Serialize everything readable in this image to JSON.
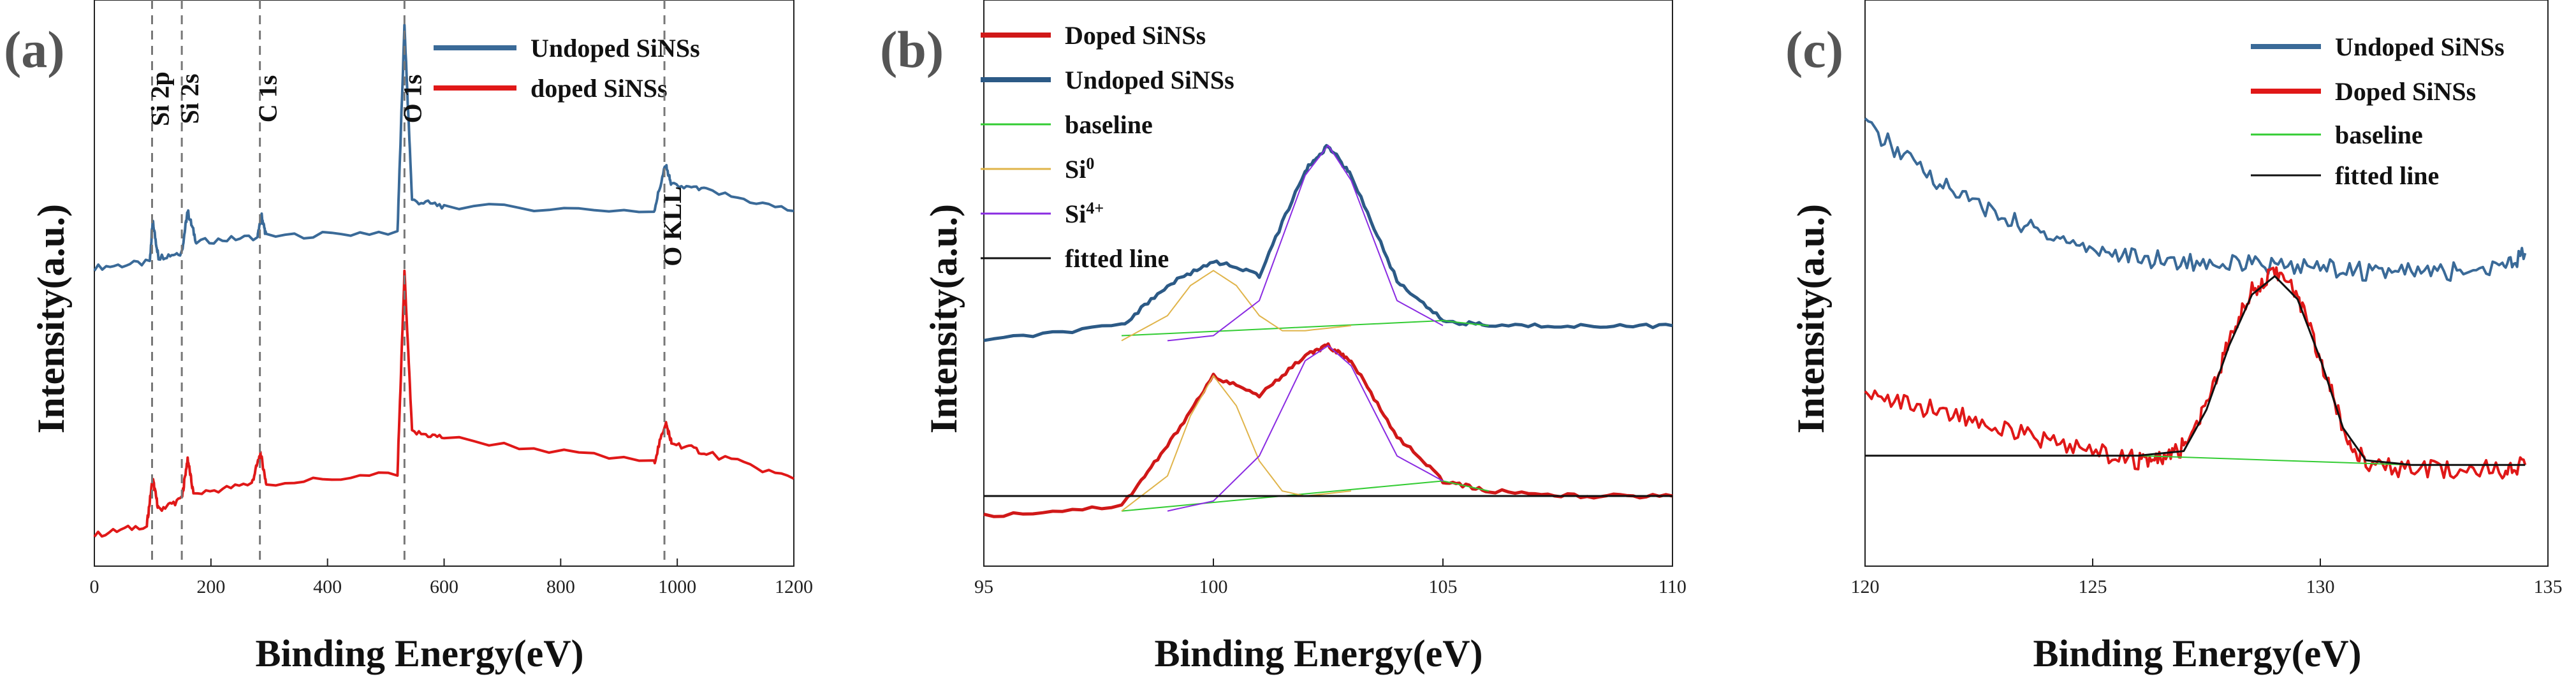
{
  "chart_data": [
    {
      "type": "line",
      "panel_label": "(a)",
      "xlabel": "Binding Energy(eV)",
      "ylabel": "Intensity(a.u.)",
      "xlim": [
        0,
        1200
      ],
      "xticks": [
        0,
        200,
        400,
        600,
        800,
        1000,
        1200
      ],
      "legend": [
        "Undoped SiNSs",
        "doped SiNSs"
      ],
      "series": [
        {
          "name": "Undoped SiNSs",
          "color": "#3a6a98",
          "x": [
            0,
            95,
            100,
            110,
            150,
            160,
            175,
            280,
            287,
            295,
            520,
            532,
            545,
            600,
            960,
            980,
            990,
            1050,
            1200
          ],
          "y": [
            53,
            54,
            62,
            55,
            56,
            64,
            58,
            59,
            63,
            59,
            60,
            100,
            66,
            65,
            64,
            73,
            69,
            68,
            64
          ]
        },
        {
          "name": "doped SiNSs",
          "color": "#e01818",
          "x": [
            0,
            90,
            100,
            110,
            150,
            160,
            170,
            270,
            285,
            295,
            520,
            532,
            545,
            600,
            960,
            980,
            990,
            1050,
            1200
          ],
          "y": [
            1,
            3,
            12,
            6,
            8,
            16,
            9,
            11,
            17,
            11,
            13,
            52,
            21,
            20,
            15,
            23,
            19,
            17,
            12
          ]
        }
      ],
      "peak_labels": [
        {
          "text": "Si 2p",
          "x": 99
        },
        {
          "text": "Si 2s",
          "x": 150
        },
        {
          "text": "C 1s",
          "x": 284
        },
        {
          "text": "O 1s",
          "x": 532
        },
        {
          "text": "O KLL",
          "x": 978
        }
      ]
    },
    {
      "type": "line",
      "panel_label": "(b)",
      "xlabel": "Binding Energy(eV)",
      "ylabel": "Intensity(a.u.)",
      "xlim": [
        95,
        110
      ],
      "xticks": [
        95,
        100,
        105,
        110
      ],
      "legend": [
        "Doped SiNSs",
        "Undoped SiNSs",
        "baseline",
        "Si0",
        "Si4+",
        "fitted line"
      ],
      "series": [
        {
          "name": "Doped SiNSs",
          "color": "#d01818",
          "x": [
            95,
            98,
            99,
            100,
            101,
            102,
            102.5,
            103,
            104,
            105,
            106,
            108,
            110
          ],
          "y": [
            2,
            4,
            16,
            30,
            26,
            34,
            36,
            33,
            18,
            9,
            7,
            6,
            6
          ]
        },
        {
          "name": "Undoped SiNSs",
          "color": "#2c5a86",
          "x": [
            95,
            98,
            99,
            100,
            101,
            102,
            102.5,
            103,
            104,
            105,
            106,
            108,
            110
          ],
          "y": [
            37,
            40,
            48,
            53,
            50,
            71,
            76,
            70,
            49,
            41,
            40,
            40,
            40
          ]
        },
        {
          "name": "baseline",
          "color": "#33cc33",
          "x": [
            98,
            105,
            106
          ],
          "y": [
            38,
            41,
            40
          ]
        },
        {
          "name": "baseline",
          "color": "#33cc33",
          "x": [
            98,
            105,
            106
          ],
          "y": [
            3,
            9,
            7
          ]
        },
        {
          "name": "Si0",
          "color": "#e0b44a",
          "x": [
            98,
            99,
            99.5,
            100,
            100.5,
            101,
            101.5,
            102,
            103
          ],
          "y": [
            37,
            42,
            48,
            51,
            48,
            42,
            39,
            39,
            40
          ]
        },
        {
          "name": "Si0",
          "color": "#e0b44a",
          "x": [
            98,
            99,
            99.5,
            100,
            100.5,
            101,
            101.5,
            102,
            103
          ],
          "y": [
            3,
            10,
            22,
            30,
            24,
            13,
            7,
            6,
            7
          ]
        },
        {
          "name": "Si4+",
          "color": "#8a2be2",
          "x": [
            99,
            100,
            101,
            102,
            102.5,
            103,
            104,
            105
          ],
          "y": [
            37,
            38,
            45,
            70,
            76,
            69,
            45,
            40
          ]
        },
        {
          "name": "Si4+",
          "color": "#8a2be2",
          "x": [
            99,
            100,
            101,
            102,
            102.5,
            103,
            104,
            105
          ],
          "y": [
            3,
            5,
            14,
            33,
            36,
            32,
            14,
            9
          ]
        },
        {
          "name": "fitted line",
          "color": "#111111",
          "x": [
            95,
            110
          ],
          "y": [
            6,
            6
          ]
        }
      ]
    },
    {
      "type": "line",
      "panel_label": "(c)",
      "xlabel": "Binding Energy(eV)",
      "ylabel": "Intensity(a.u.)",
      "xlim": [
        120,
        135
      ],
      "xticks": [
        120,
        125,
        130,
        135
      ],
      "legend": [
        "Undoped SiNSs",
        "Doped SiNSs",
        "baseline",
        "fitted line"
      ],
      "series": [
        {
          "name": "Undoped SiNSs",
          "color": "#3a6a98",
          "x": [
            120,
            121,
            122,
            123,
            124,
            125,
            126,
            127,
            128,
            129,
            130,
            131,
            132,
            133,
            134,
            134.5
          ],
          "y": [
            88,
            80,
            73,
            68,
            64,
            61,
            59,
            58,
            58,
            57,
            57,
            56,
            56,
            56,
            57,
            60
          ]
        },
        {
          "name": "Doped SiNSs",
          "color": "#e01818",
          "x": [
            120,
            121,
            122,
            123,
            124,
            125,
            126,
            126.5,
            127,
            127.5,
            128,
            128.5,
            129,
            129.5,
            130,
            130.5,
            131,
            132,
            133,
            134,
            134.5
          ],
          "y": [
            30,
            27,
            25,
            22,
            19,
            17,
            15,
            15,
            18,
            27,
            41,
            52,
            56,
            51,
            37,
            22,
            14,
            13,
            13,
            13,
            14
          ]
        },
        {
          "name": "baseline",
          "color": "#33cc33",
          "x": [
            126,
            132
          ],
          "y": [
            16,
            14
          ]
        },
        {
          "name": "fitted line",
          "color": "#111111",
          "x": [
            120,
            126,
            127,
            127.5,
            128,
            128.5,
            129,
            129.5,
            130,
            130.5,
            131,
            132,
            134.5
          ],
          "y": [
            16,
            16,
            17,
            26,
            40,
            51,
            55,
            50,
            37,
            22,
            15,
            14,
            14
          ]
        }
      ]
    }
  ],
  "legend_superscripts": {
    "Si0": "0",
    "Si4+": "4+"
  }
}
